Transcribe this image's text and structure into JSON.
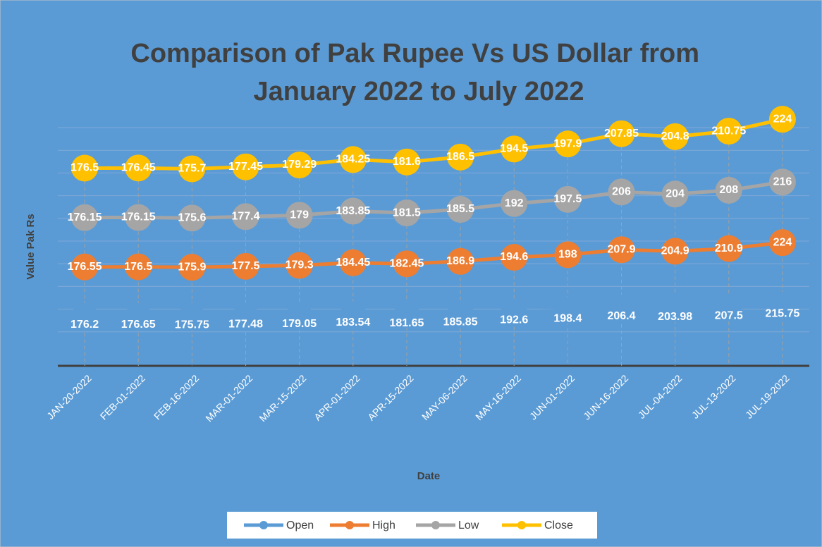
{
  "chart_data": {
    "type": "line",
    "stacked": true,
    "title": "Comparison of Pak Rupee Vs US Dollar from January 2022 to July 2022",
    "x_label": "Date",
    "y_label": "Value Pak Rs",
    "categories": [
      "JAN-20-2022",
      "FEB-01-2022",
      "FEB-16-2022",
      "MAR-01-2022",
      "MAR-15-2022",
      "APR-01-2022",
      "APR-15-2022",
      "MAY-06-2022",
      "MAY-16-2022",
      "JUN-01-2022",
      "JUN-16-2022",
      "JUL-04-2022",
      "JUL-13-2022",
      "JUL-19-2022"
    ],
    "series": [
      {
        "name": "Open",
        "color": "#5b9bd5",
        "values": [
          176.2,
          176.65,
          175.75,
          177.48,
          179.05,
          183.54,
          181.65,
          185.85,
          192.6,
          198.4,
          206.4,
          203.98,
          207.5,
          215.75
        ]
      },
      {
        "name": "High",
        "color": "#ed7d31",
        "values": [
          176.55,
          176.5,
          175.9,
          177.5,
          179.3,
          184.45,
          182.45,
          186.9,
          194.6,
          198,
          207.9,
          204.9,
          210.9,
          224
        ]
      },
      {
        "name": "Low",
        "color": "#a5a5a5",
        "values": [
          176.15,
          176.15,
          175.6,
          177.4,
          179,
          183.85,
          181.5,
          185.5,
          192,
          197.5,
          206,
          204,
          208,
          216
        ]
      },
      {
        "name": "Close",
        "color": "#ffc000",
        "values": [
          176.5,
          176.45,
          175.7,
          177.45,
          179.29,
          184.25,
          181.6,
          186.5,
          194.5,
          197.9,
          207.85,
          204.8,
          210.75,
          224
        ]
      }
    ],
    "ylim": [
      0,
      850
    ],
    "grid": true,
    "legend": "bottom"
  }
}
